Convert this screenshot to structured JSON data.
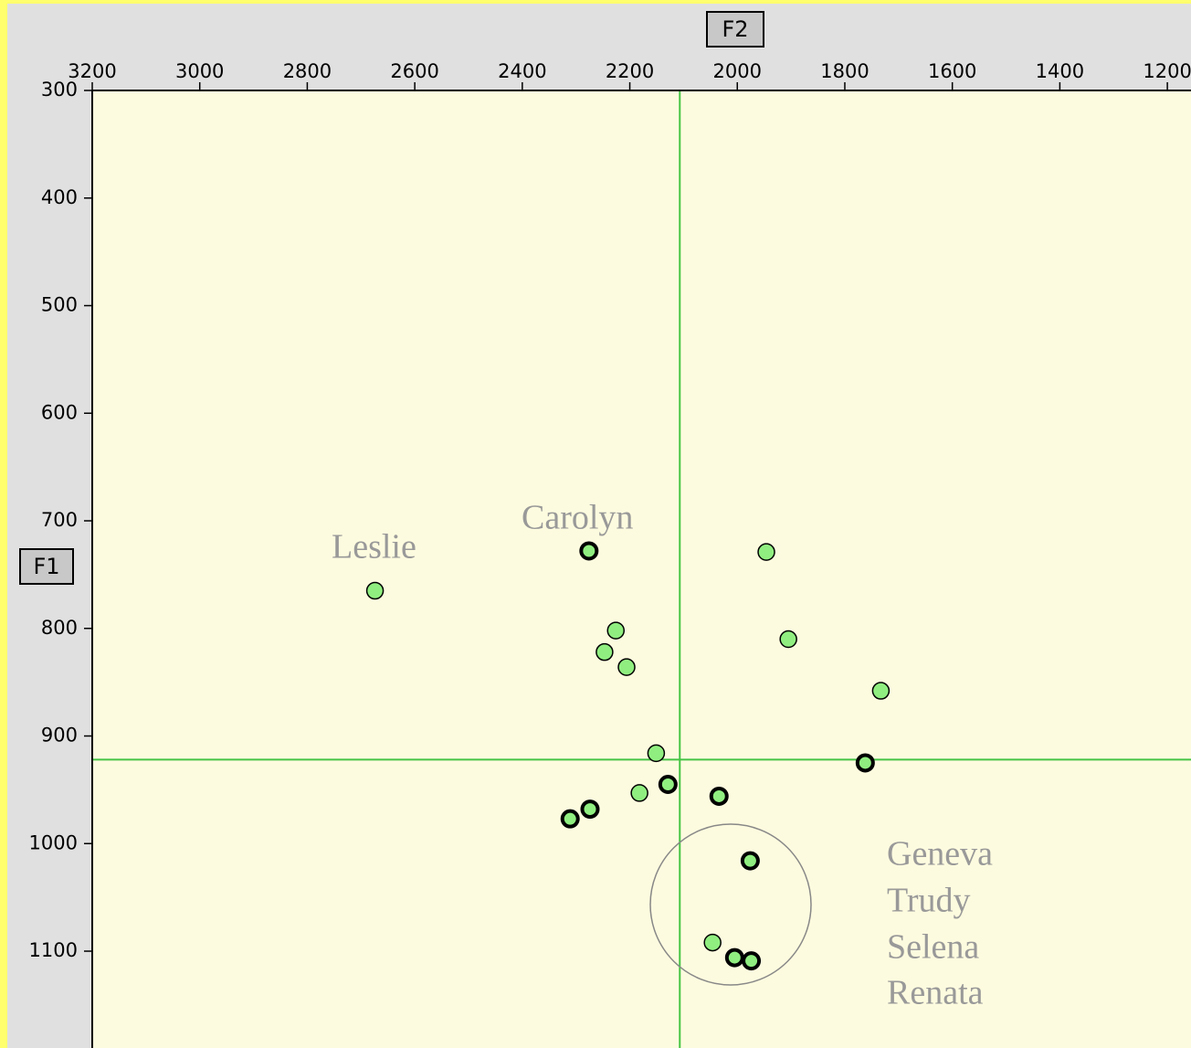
{
  "chart_data": {
    "type": "scatter",
    "x_label": "F2",
    "y_label": "F1",
    "xlim": [
      3200,
      1156
    ],
    "ylim": [
      300,
      1190
    ],
    "xticks": [
      3200,
      3000,
      2800,
      2600,
      2400,
      2200,
      2000,
      1800,
      1600,
      1400,
      1200
    ],
    "yticks": [
      300,
      400,
      500,
      600,
      700,
      800,
      900,
      1000,
      1100
    ],
    "color": "#90ee80",
    "x": [
      2674,
      2276,
      1946,
      2226,
      2247,
      2206,
      1905,
      1733,
      2151,
      1762,
      2129,
      2182,
      2034,
      2274,
      2311,
      1976,
      2046,
      2005,
      1974
    ],
    "y": [
      765,
      728,
      729,
      802,
      822,
      836,
      810,
      858,
      916,
      925,
      945,
      953,
      956,
      968,
      977,
      1016,
      1092,
      1106,
      1109
    ],
    "bold": [
      false,
      true,
      false,
      false,
      false,
      false,
      false,
      false,
      false,
      true,
      true,
      false,
      true,
      true,
      true,
      true,
      false,
      true,
      true
    ],
    "crosshair": {
      "x": 2107,
      "y": 922
    },
    "annotations": [
      "Leslie",
      "Carolyn",
      "Geneva",
      "Trudy",
      "Selena",
      "Renata"
    ]
  }
}
